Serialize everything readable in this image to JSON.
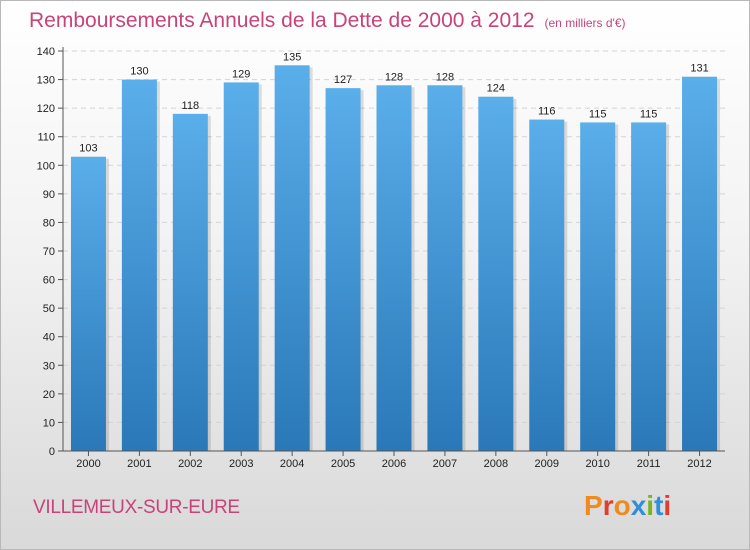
{
  "header": {
    "title": "Remboursements Annuels de la Dette de 2000 à 2012",
    "unit": "(en milliers d'€)"
  },
  "footer": {
    "commune": "VILLEMEUX-SUR-EURE",
    "logo": "Proxiti"
  },
  "colors": {
    "title": "#c8437a",
    "bar_top": "#5aaeea",
    "bar_bottom": "#2a78b8",
    "logo": [
      "#f08a1c",
      "#e23c2c",
      "#f08a1c",
      "#2f8fd8",
      "#7ab51d",
      "#2f8fd8",
      "#e23c2c"
    ]
  },
  "chart_data": {
    "type": "bar",
    "categories": [
      "2000",
      "2001",
      "2002",
      "2003",
      "2004",
      "2005",
      "2006",
      "2007",
      "2008",
      "2009",
      "2010",
      "2011",
      "2012"
    ],
    "values": [
      103,
      130,
      118,
      129,
      135,
      127,
      128,
      128,
      124,
      116,
      115,
      115,
      131
    ],
    "title": "Remboursements Annuels de la Dette de 2000 à 2012",
    "xlabel": "",
    "ylabel": "",
    "ylim": [
      0,
      140
    ],
    "yticks": [
      0,
      10,
      20,
      30,
      40,
      50,
      60,
      70,
      80,
      90,
      100,
      110,
      120,
      130,
      140
    ],
    "grid": true,
    "legend": "none"
  }
}
